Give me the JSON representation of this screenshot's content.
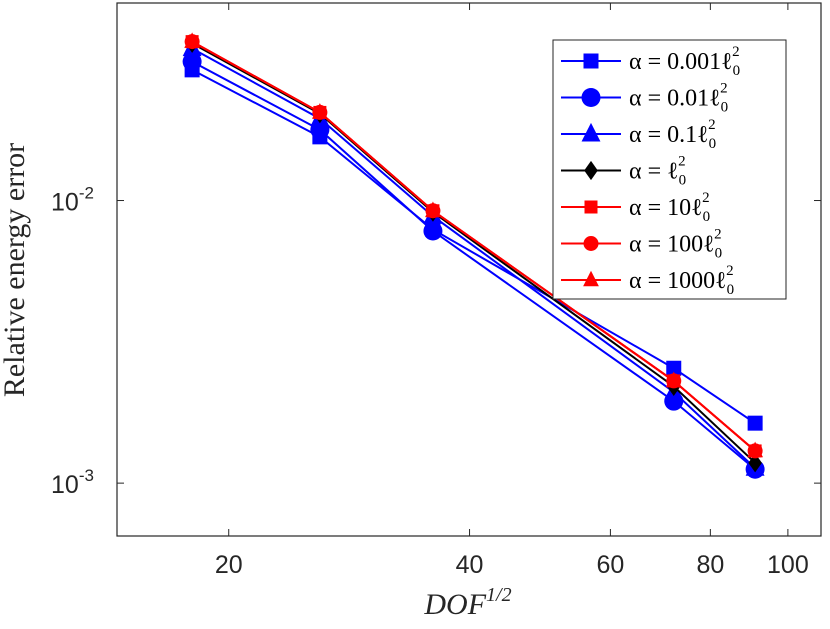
{
  "chart_data": {
    "type": "line",
    "scale": {
      "x": "log",
      "y": "log"
    },
    "xlabel": "DOF^{1/2}",
    "xlabel_main": "DOF",
    "xlabel_sup": "1/2",
    "ylabel": "Relative energy error",
    "xlim": [
      14.5,
      110
    ],
    "ylim": [
      0.00065,
      0.05
    ],
    "xticks": [
      {
        "value": 20,
        "label": "20"
      },
      {
        "value": 40,
        "label": "40"
      },
      {
        "value": 60,
        "label": "60"
      },
      {
        "value": 80,
        "label": "80"
      },
      {
        "value": 100,
        "label": "100"
      }
    ],
    "yticks": [
      {
        "value": 0.01,
        "base": "10",
        "exp": "-2"
      },
      {
        "value": 0.001,
        "base": "10",
        "exp": "-3"
      }
    ],
    "legend_position": "top-right",
    "x": [
      18,
      26,
      36,
      72,
      91
    ],
    "series": [
      {
        "name": "α = 0.001ℓ₀²",
        "legend_main": "α = 0.001ℓ",
        "color": "#0000ff",
        "marker": "square",
        "values": [
          0.029,
          0.0168,
          0.0079,
          0.00255,
          0.00163
        ]
      },
      {
        "name": "α = 0.01ℓ₀²",
        "legend_main": "α = 0.01ℓ",
        "color": "#0000ff",
        "marker": "circle",
        "values": [
          0.031,
          0.0178,
          0.0078,
          0.00195,
          0.00112
        ]
      },
      {
        "name": "α = 0.1ℓ₀²",
        "legend_main": "α = 0.1ℓ",
        "color": "#0000ff",
        "marker": "triangle",
        "values": [
          0.0345,
          0.0195,
          0.0088,
          0.0021,
          0.00113
        ]
      },
      {
        "name": "α = ℓ₀²",
        "legend_main": "α = ℓ",
        "color": "#000000",
        "marker": "diamond",
        "values": [
          0.036,
          0.0203,
          0.0091,
          0.0022,
          0.00118
        ]
      },
      {
        "name": "α = 10ℓ₀²",
        "legend_main": "α = 10ℓ",
        "color": "#ff0000",
        "marker": "square",
        "values": [
          0.0365,
          0.0205,
          0.0092,
          0.0023,
          0.0013
        ]
      },
      {
        "name": "α = 100ℓ₀²",
        "legend_main": "α = 100ℓ",
        "color": "#ff0000",
        "marker": "circle",
        "values": [
          0.0365,
          0.0205,
          0.0092,
          0.0023,
          0.0013
        ]
      },
      {
        "name": "α = 1000ℓ₀²",
        "legend_main": "α = 1000ℓ",
        "color": "#ff0000",
        "marker": "triangle",
        "values": [
          0.0365,
          0.0205,
          0.0092,
          0.0023,
          0.0013
        ]
      }
    ],
    "legend_sup": "2",
    "legend_sub": "0"
  }
}
